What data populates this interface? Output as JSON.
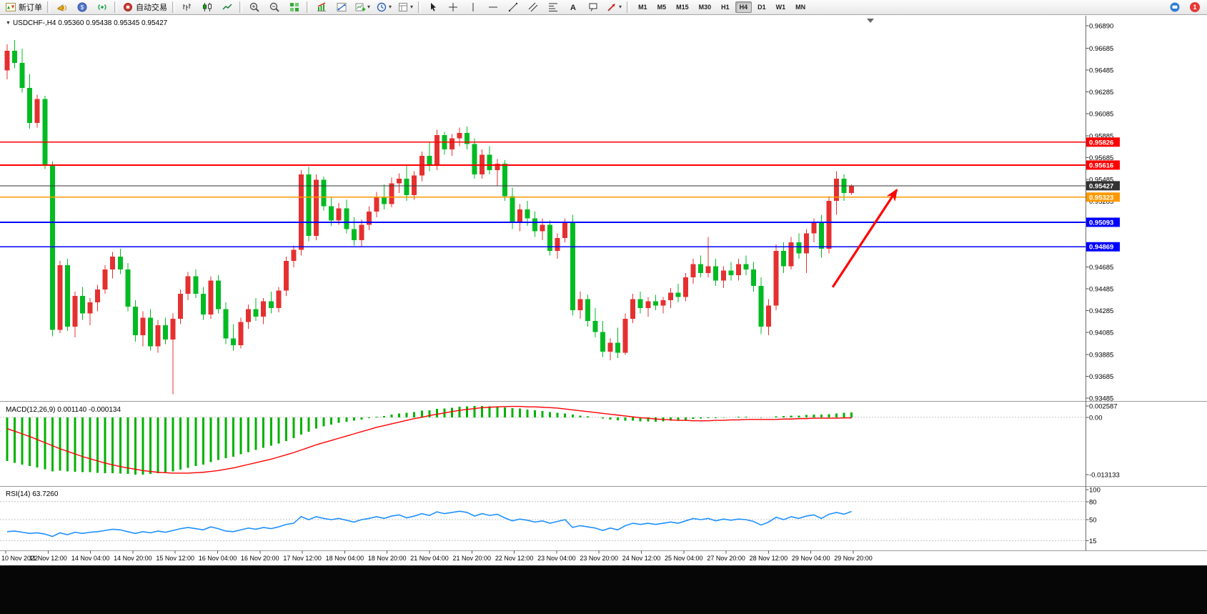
{
  "toolbar": {
    "new_order_label": "新订单",
    "auto_trading_label": "自动交易",
    "timeframes": [
      "M1",
      "M5",
      "M15",
      "M30",
      "H1",
      "H4",
      "D1",
      "W1",
      "MN"
    ],
    "active_timeframe": "H4",
    "notification_count": "1"
  },
  "chart": {
    "title": "USDCHF-,H4  0.95360 0.95438 0.95345 0.95427",
    "macd_label": "MACD(12,26,9) 0.001140 -0.000134",
    "rsi_label": "RSI(14) 63.7260"
  },
  "chart_data": {
    "type": "candlestick",
    "symbol": "USDCHF-",
    "period": "H4",
    "ohlc": {
      "open": 0.9536,
      "high": 0.95438,
      "low": 0.95345,
      "close": 0.95427
    },
    "price_axis": {
      "min": 0.93485,
      "max": 0.9689,
      "ticks": [
        "0.96890",
        "0.96685",
        "0.96485",
        "0.96285",
        "0.96085",
        "0.95885",
        "0.95685",
        "0.95485",
        "0.95285",
        "0.94685",
        "0.94485",
        "0.94285",
        "0.94085",
        "0.93885",
        "0.93685",
        "0.93485"
      ]
    },
    "time_labels": [
      "10 Nov 2022",
      "11 Nov 12:00",
      "14 Nov 04:00",
      "14 Nov 20:00",
      "15 Nov 12:00",
      "16 Nov 04:00",
      "16 Nov 20:00",
      "17 Nov 12:00",
      "18 Nov 04:00",
      "18 Nov 20:00",
      "21 Nov 04:00",
      "21 Nov 20:00",
      "22 Nov 12:00",
      "23 Nov 04:00",
      "23 Nov 20:00",
      "24 Nov 12:00",
      "25 Nov 04:00",
      "27 Nov 20:00",
      "28 Nov 12:00",
      "29 Nov 04:00",
      "29 Nov 20:00"
    ],
    "hlines": [
      {
        "price": 0.95826,
        "color": "#ff0000",
        "width": 1.8,
        "name": "resistance-line-upper",
        "label": "0.95826"
      },
      {
        "price": 0.95616,
        "color": "#ff0000",
        "width": 1.8,
        "name": "resistance-line-lower",
        "label": "0.95616"
      },
      {
        "price": 0.95323,
        "color": "#ff9900",
        "width": 1.8,
        "name": "pivot-line-orange",
        "label": "0.95323"
      },
      {
        "price": 0.95093,
        "color": "#0000ff",
        "width": 1.8,
        "name": "support-line-upper",
        "label": "0.95093"
      },
      {
        "price": 0.94869,
        "color": "#0000ff",
        "width": 1.8,
        "name": "support-line-lower",
        "label": "0.94869"
      },
      {
        "price": 0.95427,
        "color": "#333333",
        "width": 1.1,
        "name": "current-price-line",
        "label": "0.95427"
      }
    ],
    "arrow": {
      "from_index": 109.5,
      "from_price": 0.945,
      "to_index": 118,
      "to_price": 0.9539,
      "color": "#ff0000"
    },
    "colors": {
      "up": "#e53030",
      "down": "#00bb22",
      "macd_histogram": "#00b200",
      "macd_signal": "#ff0000",
      "rsi": "#1e90ff"
    },
    "candles": [
      [
        0.9648,
        0.9672,
        0.964,
        0.9666
      ],
      [
        0.9666,
        0.9676,
        0.965,
        0.9655
      ],
      [
        0.9655,
        0.9668,
        0.9628,
        0.9632
      ],
      [
        0.9632,
        0.9645,
        0.9595,
        0.96
      ],
      [
        0.96,
        0.9626,
        0.9596,
        0.9622
      ],
      [
        0.9622,
        0.9625,
        0.9558,
        0.9561
      ],
      [
        0.9561,
        0.9565,
        0.9405,
        0.9411
      ],
      [
        0.9411,
        0.9474,
        0.9408,
        0.947
      ],
      [
        0.947,
        0.9476,
        0.941,
        0.9414
      ],
      [
        0.9414,
        0.9446,
        0.9404,
        0.9442
      ],
      [
        0.9442,
        0.945,
        0.942,
        0.9426
      ],
      [
        0.9426,
        0.944,
        0.9415,
        0.9436
      ],
      [
        0.9436,
        0.9452,
        0.9428,
        0.9448
      ],
      [
        0.9448,
        0.947,
        0.9444,
        0.9466
      ],
      [
        0.9466,
        0.9482,
        0.9458,
        0.9478
      ],
      [
        0.9478,
        0.9485,
        0.9462,
        0.9466
      ],
      [
        0.9466,
        0.9472,
        0.9428,
        0.9432
      ],
      [
        0.9432,
        0.9438,
        0.94,
        0.9406
      ],
      [
        0.9406,
        0.9428,
        0.9396,
        0.9422
      ],
      [
        0.9422,
        0.943,
        0.9392,
        0.9396
      ],
      [
        0.9396,
        0.942,
        0.939,
        0.9415
      ],
      [
        0.9415,
        0.9422,
        0.9398,
        0.9402
      ],
      [
        0.9402,
        0.9426,
        0.9352,
        0.9421
      ],
      [
        0.9421,
        0.9448,
        0.9416,
        0.9444
      ],
      [
        0.9444,
        0.9464,
        0.9438,
        0.946
      ],
      [
        0.946,
        0.9466,
        0.944,
        0.9444
      ],
      [
        0.9444,
        0.945,
        0.942,
        0.9425
      ],
      [
        0.9425,
        0.946,
        0.9421,
        0.9456
      ],
      [
        0.9456,
        0.9461,
        0.9426,
        0.943
      ],
      [
        0.943,
        0.9436,
        0.9398,
        0.9403
      ],
      [
        0.9403,
        0.9416,
        0.9392,
        0.9397
      ],
      [
        0.9397,
        0.9422,
        0.9394,
        0.9418
      ],
      [
        0.9418,
        0.9434,
        0.9412,
        0.943
      ],
      [
        0.943,
        0.944,
        0.9419,
        0.9423
      ],
      [
        0.9423,
        0.944,
        0.9416,
        0.9437
      ],
      [
        0.9437,
        0.9446,
        0.9426,
        0.9431
      ],
      [
        0.9431,
        0.945,
        0.9427,
        0.9447
      ],
      [
        0.9447,
        0.9478,
        0.9442,
        0.9474
      ],
      [
        0.9474,
        0.9488,
        0.9468,
        0.9484
      ],
      [
        0.9484,
        0.9557,
        0.9479,
        0.9553
      ],
      [
        0.9553,
        0.956,
        0.9492,
        0.9497
      ],
      [
        0.9497,
        0.9553,
        0.9493,
        0.9548
      ],
      [
        0.9548,
        0.9551,
        0.952,
        0.9524
      ],
      [
        0.9524,
        0.9532,
        0.9506,
        0.9511
      ],
      [
        0.9511,
        0.9527,
        0.9507,
        0.9522
      ],
      [
        0.9522,
        0.953,
        0.9499,
        0.9503
      ],
      [
        0.9503,
        0.9514,
        0.9488,
        0.9493
      ],
      [
        0.9493,
        0.9512,
        0.9487,
        0.9507
      ],
      [
        0.9507,
        0.9524,
        0.9502,
        0.9519
      ],
      [
        0.9519,
        0.9537,
        0.9514,
        0.9532
      ],
      [
        0.9532,
        0.9544,
        0.9521,
        0.9526
      ],
      [
        0.9526,
        0.955,
        0.9523,
        0.9545
      ],
      [
        0.9545,
        0.9554,
        0.9536,
        0.9549
      ],
      [
        0.9549,
        0.9562,
        0.9529,
        0.9534
      ],
      [
        0.9534,
        0.9556,
        0.953,
        0.9552
      ],
      [
        0.9552,
        0.9574,
        0.9547,
        0.957
      ],
      [
        0.957,
        0.9582,
        0.9556,
        0.9561
      ],
      [
        0.9561,
        0.9594,
        0.9557,
        0.9589
      ],
      [
        0.9589,
        0.9592,
        0.9571,
        0.9576
      ],
      [
        0.9576,
        0.959,
        0.957,
        0.9586
      ],
      [
        0.9586,
        0.9596,
        0.9579,
        0.9591
      ],
      [
        0.9591,
        0.9597,
        0.9576,
        0.9581
      ],
      [
        0.9581,
        0.9586,
        0.9549,
        0.9553
      ],
      [
        0.9553,
        0.9576,
        0.9549,
        0.9571
      ],
      [
        0.9571,
        0.9579,
        0.9553,
        0.9557
      ],
      [
        0.9557,
        0.9567,
        0.9543,
        0.9563
      ],
      [
        0.9563,
        0.9566,
        0.9529,
        0.9533
      ],
      [
        0.9533,
        0.9541,
        0.9503,
        0.9509
      ],
      [
        0.9509,
        0.9526,
        0.9501,
        0.9521
      ],
      [
        0.9521,
        0.9529,
        0.9506,
        0.9513
      ],
      [
        0.9513,
        0.9519,
        0.9496,
        0.9501
      ],
      [
        0.9501,
        0.9513,
        0.9493,
        0.9507
      ],
      [
        0.9507,
        0.9511,
        0.9479,
        0.9483
      ],
      [
        0.9483,
        0.9499,
        0.9476,
        0.9495
      ],
      [
        0.9495,
        0.9513,
        0.9491,
        0.9509
      ],
      [
        0.9509,
        0.9516,
        0.9424,
        0.9429
      ],
      [
        0.9429,
        0.9446,
        0.9421,
        0.9439
      ],
      [
        0.9439,
        0.9443,
        0.9414,
        0.9419
      ],
      [
        0.9419,
        0.9431,
        0.9404,
        0.9409
      ],
      [
        0.9409,
        0.9419,
        0.9386,
        0.9391
      ],
      [
        0.9391,
        0.9403,
        0.9383,
        0.9399
      ],
      [
        0.9399,
        0.9413,
        0.9385,
        0.939
      ],
      [
        0.939,
        0.9426,
        0.9388,
        0.9421
      ],
      [
        0.9421,
        0.9444,
        0.9417,
        0.9439
      ],
      [
        0.9439,
        0.9446,
        0.9426,
        0.9431
      ],
      [
        0.9431,
        0.9441,
        0.9423,
        0.9437
      ],
      [
        0.9437,
        0.9443,
        0.9429,
        0.9433
      ],
      [
        0.9433,
        0.9441,
        0.9426,
        0.9438
      ],
      [
        0.9438,
        0.9449,
        0.9431,
        0.9445
      ],
      [
        0.9445,
        0.9453,
        0.9436,
        0.9441
      ],
      [
        0.9441,
        0.9463,
        0.9437,
        0.9459
      ],
      [
        0.9459,
        0.9476,
        0.9453,
        0.9471
      ],
      [
        0.9471,
        0.9479,
        0.9459,
        0.9463
      ],
      [
        0.9463,
        0.9496,
        0.9459,
        0.9469
      ],
      [
        0.9469,
        0.9476,
        0.9451,
        0.9456
      ],
      [
        0.9456,
        0.9469,
        0.9449,
        0.9465
      ],
      [
        0.9465,
        0.9473,
        0.9456,
        0.9461
      ],
      [
        0.9461,
        0.9476,
        0.9456,
        0.9471
      ],
      [
        0.9471,
        0.9479,
        0.9461,
        0.9466
      ],
      [
        0.9466,
        0.9473,
        0.9446,
        0.9451
      ],
      [
        0.9451,
        0.9459,
        0.9407,
        0.9414
      ],
      [
        0.9414,
        0.9439,
        0.9406,
        0.9433
      ],
      [
        0.9433,
        0.9489,
        0.9429,
        0.9483
      ],
      [
        0.9483,
        0.9491,
        0.9463,
        0.9469
      ],
      [
        0.9469,
        0.9496,
        0.9466,
        0.9491
      ],
      [
        0.9491,
        0.9499,
        0.9476,
        0.9481
      ],
      [
        0.9481,
        0.9503,
        0.9463,
        0.9499
      ],
      [
        0.9499,
        0.9513,
        0.9491,
        0.9509
      ],
      [
        0.9509,
        0.9516,
        0.9477,
        0.9485
      ],
      [
        0.9485,
        0.9533,
        0.9481,
        0.9529
      ],
      [
        0.9529,
        0.9556,
        0.9516,
        0.9549
      ],
      [
        0.9549,
        0.9553,
        0.9529,
        0.9536
      ],
      [
        0.9536,
        0.95438,
        0.95345,
        0.95427
      ]
    ],
    "macd": {
      "params": "12,26,9",
      "main_value": 0.00114,
      "signal_value": -0.000134,
      "max": 0.002587,
      "min": -0.013133,
      "axis_ticks": [
        "0.002587",
        "0.00",
        "-0.013133"
      ],
      "histogram": [
        -0.01,
        -0.0104,
        -0.0108,
        -0.0112,
        -0.0115,
        -0.0119,
        -0.0124,
        -0.0122,
        -0.0124,
        -0.0125,
        -0.0126,
        -0.0126,
        -0.0127,
        -0.0128,
        -0.0128,
        -0.0129,
        -0.013,
        -0.0131,
        -0.01313,
        -0.013,
        -0.0128,
        -0.0126,
        -0.0124,
        -0.012,
        -0.0116,
        -0.0112,
        -0.0108,
        -0.0103,
        -0.0098,
        -0.0094,
        -0.009,
        -0.0085,
        -0.008,
        -0.0075,
        -0.007,
        -0.0065,
        -0.006,
        -0.0054,
        -0.0048,
        -0.004,
        -0.0033,
        -0.0026,
        -0.0021,
        -0.0017,
        -0.0013,
        -0.001,
        -0.0008,
        -0.0005,
        -0.0002,
        0.0001,
        0.0003,
        0.0006,
        0.0009,
        0.001,
        0.0012,
        0.0015,
        0.0016,
        0.0019,
        0.002,
        0.0022,
        0.0024,
        0.0025,
        0.00259,
        0.0026,
        0.0025,
        0.0025,
        0.0023,
        0.0021,
        0.002,
        0.0018,
        0.0016,
        0.0014,
        0.0012,
        0.001,
        0.0009,
        0.0006,
        0.0004,
        0.0002,
        0.0,
        -0.0003,
        -0.0005,
        -0.0007,
        -0.0008,
        -0.0008,
        -0.0009,
        -0.0009,
        -0.001,
        -0.0009,
        -0.0008,
        -0.0008,
        -0.0006,
        -0.0004,
        -0.0003,
        -0.0002,
        -0.0002,
        -0.0001,
        0.0,
        0.0001,
        0.0001,
        0.0,
        -0.0001,
        0.0,
        0.0002,
        0.0003,
        0.0004,
        0.0004,
        0.0005,
        0.0006,
        0.0006,
        0.0007,
        0.0009,
        0.001,
        0.00114
      ],
      "signal": [
        -0.0026,
        -0.0032,
        -0.0038,
        -0.0044,
        -0.0051,
        -0.0058,
        -0.0065,
        -0.0072,
        -0.0078,
        -0.0084,
        -0.009,
        -0.0095,
        -0.01,
        -0.0105,
        -0.0109,
        -0.0113,
        -0.0116,
        -0.0119,
        -0.0122,
        -0.0124,
        -0.0126,
        -0.0127,
        -0.0128,
        -0.0128,
        -0.0128,
        -0.0127,
        -0.0126,
        -0.0124,
        -0.0122,
        -0.0119,
        -0.0116,
        -0.0112,
        -0.0108,
        -0.0104,
        -0.01,
        -0.0096,
        -0.0091,
        -0.0086,
        -0.0081,
        -0.0075,
        -0.0069,
        -0.0063,
        -0.0058,
        -0.0053,
        -0.0048,
        -0.0043,
        -0.0038,
        -0.0033,
        -0.0028,
        -0.0023,
        -0.0019,
        -0.0015,
        -0.0011,
        -0.0007,
        -0.0003,
        0.0,
        0.0004,
        0.0007,
        0.001,
        0.0013,
        0.0016,
        0.0018,
        0.002,
        0.0022,
        0.0023,
        0.0024,
        0.00245,
        0.0025,
        0.0025,
        0.0024,
        0.0024,
        0.0023,
        0.0022,
        0.0021,
        0.0019,
        0.0017,
        0.0015,
        0.0013,
        0.0011,
        0.0009,
        0.0007,
        0.0005,
        0.0003,
        0.0001,
        -0.0001,
        -0.0002,
        -0.0004,
        -0.0005,
        -0.0006,
        -0.0007,
        -0.0007,
        -0.0008,
        -0.0008,
        -0.0008,
        -0.0007,
        -0.0007,
        -0.0006,
        -0.0006,
        -0.0005,
        -0.0005,
        -0.0005,
        -0.0005,
        -0.0005,
        -0.0004,
        -0.0004,
        -0.0003,
        -0.0003,
        -0.0002,
        -0.0002,
        -0.0002,
        -0.0002,
        -0.00015,
        -0.000134
      ]
    },
    "rsi": {
      "period": 14,
      "value": 63.726,
      "max": 100,
      "min": 0,
      "levels": [
        80,
        50,
        15
      ],
      "axis_ticks": [
        "100",
        "80",
        "50",
        "15"
      ],
      "values": [
        30,
        31,
        29,
        27,
        28,
        26,
        22,
        28,
        25,
        29,
        27,
        29,
        30,
        32,
        34,
        33,
        30,
        27,
        30,
        28,
        31,
        29,
        32,
        35,
        37,
        35,
        33,
        38,
        35,
        31,
        30,
        33,
        36,
        34,
        37,
        35,
        38,
        42,
        44,
        55,
        50,
        55,
        52,
        50,
        52,
        49,
        46,
        50,
        52,
        55,
        52,
        56,
        58,
        53,
        56,
        60,
        57,
        63,
        60,
        62,
        64,
        62,
        56,
        60,
        57,
        59,
        53,
        48,
        51,
        49,
        46,
        48,
        44,
        47,
        50,
        37,
        40,
        38,
        36,
        32,
        36,
        33,
        40,
        44,
        42,
        44,
        42,
        44,
        46,
        44,
        48,
        52,
        50,
        52,
        48,
        51,
        49,
        51,
        50,
        47,
        41,
        46,
        54,
        50,
        55,
        52,
        56,
        58,
        52,
        59,
        62,
        59,
        63.73
      ]
    }
  }
}
